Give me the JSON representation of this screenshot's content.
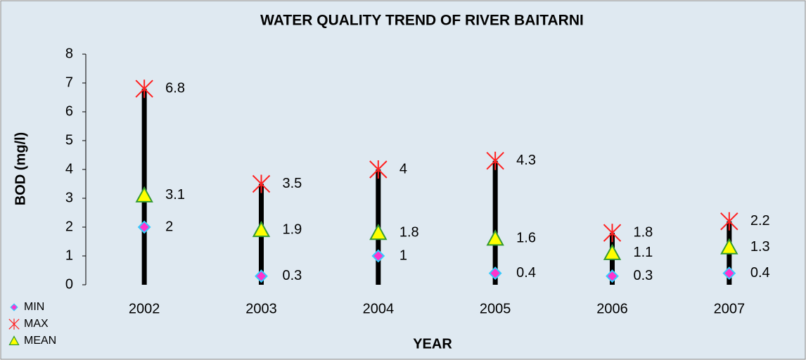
{
  "chart_data": {
    "type": "high-low",
    "title": "WATER QUALITY TREND OF RIVER BAITARNI",
    "x_label": "YEAR",
    "y_label": "BOD (mg/l)",
    "categories": [
      "2002",
      "2003",
      "2004",
      "2005",
      "2006",
      "2007"
    ],
    "series": [
      {
        "name": "MIN",
        "color": "#ff33cc",
        "values": [
          2,
          0.3,
          1,
          0.4,
          0.3,
          0.4
        ]
      },
      {
        "name": "MAX",
        "color": "#ff2020",
        "values": [
          6.8,
          3.5,
          4,
          4.3,
          1.8,
          2.2
        ]
      },
      {
        "name": "MEAN",
        "color": "#ffff00",
        "values": [
          3.1,
          1.9,
          1.8,
          1.6,
          1.1,
          1.3
        ]
      }
    ],
    "line_color": "#000000",
    "ylim": [
      0,
      8
    ],
    "yticks": [
      0,
      1,
      2,
      3,
      4,
      5,
      6,
      7,
      8
    ],
    "grid": false,
    "legend": "bottom-left"
  }
}
